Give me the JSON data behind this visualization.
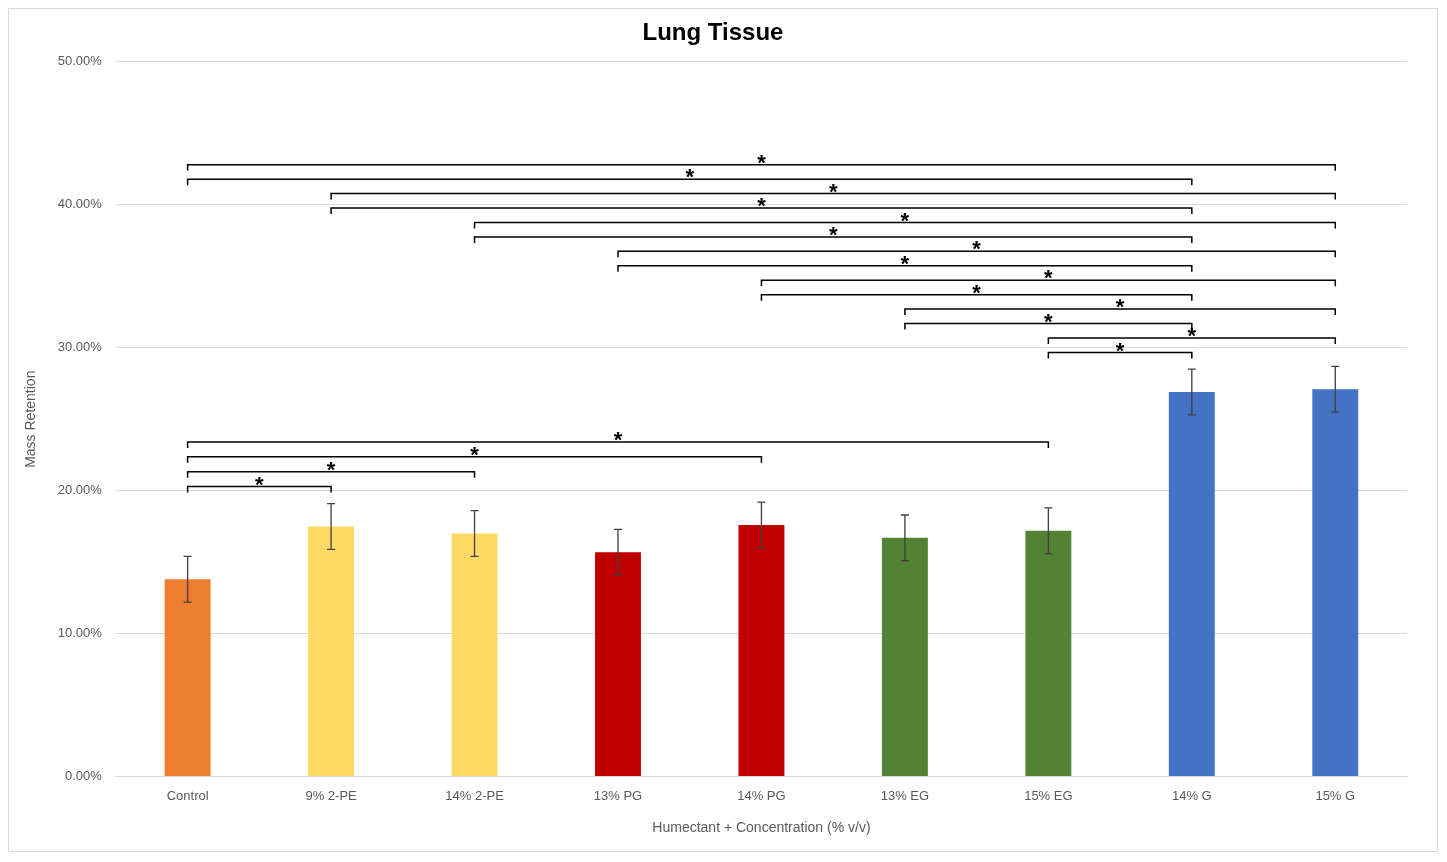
{
  "chart_data": {
    "type": "bar",
    "title": "Lung Tissue",
    "xlabel": "Humectant + Concentration (% v/v)",
    "ylabel": "Mass Retention",
    "categories": [
      "Control",
      "9% 2-PE",
      "14% 2-PE",
      "13% PG",
      "14% PG",
      "13% EG",
      "15% EG",
      "14% G",
      "15% G"
    ],
    "values": [
      13.8,
      17.5,
      17.0,
      15.7,
      17.6,
      16.7,
      17.2,
      26.9,
      27.1
    ],
    "colors": [
      "#ed7d31",
      "#ffd966",
      "#ffd966",
      "#c00000",
      "#c00000",
      "#548235",
      "#548235",
      "#4472c4",
      "#4472c4"
    ],
    "errors": [
      1.6,
      1.6,
      1.6,
      1.6,
      1.6,
      1.6,
      1.6,
      1.6,
      1.6
    ],
    "ylim": [
      0,
      50
    ],
    "yticks": [
      {
        "value": 0,
        "label": "0.00%"
      },
      {
        "value": 10,
        "label": "10.00%"
      },
      {
        "value": 20,
        "label": "20.00%"
      },
      {
        "value": 30,
        "label": "30.00%"
      },
      {
        "value": 40,
        "label": "40.00%"
      },
      {
        "value": 50,
        "label": "50.00%"
      }
    ],
    "grid": "y",
    "legend": false,
    "annotations": [
      "*",
      "*",
      "*",
      "*",
      "*",
      "*",
      "*",
      "*",
      "*",
      "*",
      "*",
      "*",
      "*",
      "*",
      "*",
      "*",
      "*",
      "*"
    ]
  }
}
